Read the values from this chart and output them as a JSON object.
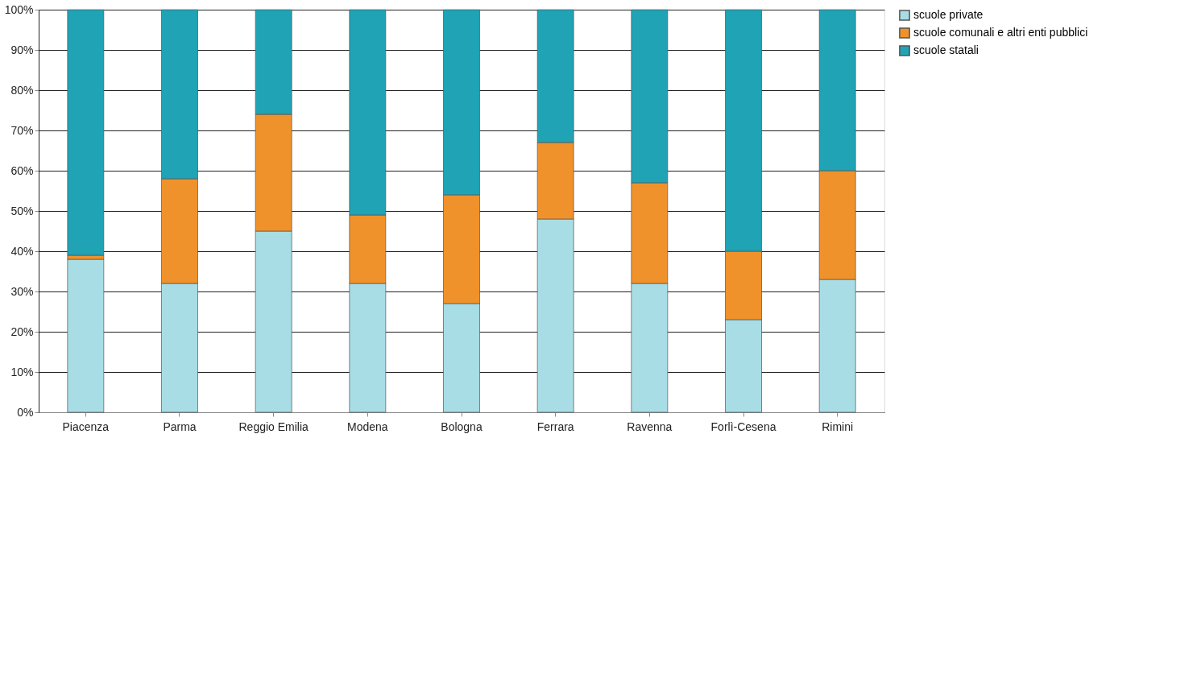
{
  "chart_data": {
    "type": "bar",
    "stacked": true,
    "categories": [
      "Piacenza",
      "Parma",
      "Reggio Emilia",
      "Modena",
      "Bologna",
      "Ferrara",
      "Ravenna",
      "Forlì-Cesena",
      "Rimini"
    ],
    "series": [
      {
        "name": "scuole private",
        "color": "#a8dde6",
        "values": [
          38,
          32,
          45,
          32,
          27,
          48,
          32,
          23,
          33
        ]
      },
      {
        "name": "scuole comunali e altri enti pubblici",
        "color": "#f0922b",
        "values": [
          1,
          26,
          29,
          17,
          27,
          19,
          25,
          17,
          27
        ]
      },
      {
        "name": "scuole statali",
        "color": "#1fa3b5",
        "values": [
          61,
          42,
          26,
          51,
          46,
          33,
          43,
          60,
          40
        ]
      }
    ],
    "ylim": [
      0,
      100
    ],
    "yticks": [
      {
        "value": 0,
        "label": "0%"
      },
      {
        "value": 10,
        "label": "10%"
      },
      {
        "value": 20,
        "label": "20%"
      },
      {
        "value": 30,
        "label": "30%"
      },
      {
        "value": 40,
        "label": "40%"
      },
      {
        "value": 50,
        "label": "50%"
      },
      {
        "value": 60,
        "label": "60%"
      },
      {
        "value": 70,
        "label": "70%"
      },
      {
        "value": 80,
        "label": "80%"
      },
      {
        "value": 90,
        "label": "90%"
      },
      {
        "value": 100,
        "label": "100%"
      }
    ],
    "grid": "y",
    "legend": "right"
  }
}
